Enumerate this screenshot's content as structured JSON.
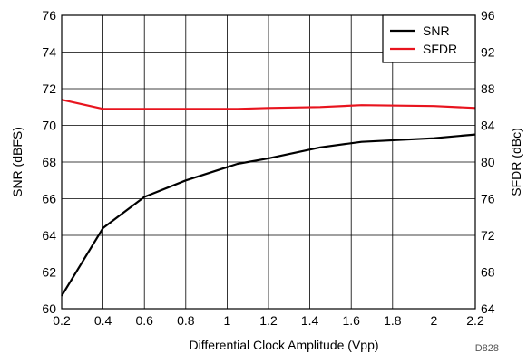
{
  "chart_data": {
    "type": "line",
    "xlabel": "Differential Clock Amplitude (Vpp)",
    "ylabel_left": "SNR (dBFS)",
    "ylabel_right": "SFDR (dBc)",
    "figure_id": "D828",
    "xlim": [
      0.2,
      2.2
    ],
    "ylim_left": [
      60,
      76
    ],
    "ylim_right": [
      64,
      96
    ],
    "x_ticks": [
      "0.2",
      "0.4",
      "0.6",
      "0.8",
      "1",
      "1.2",
      "1.4",
      "1.6",
      "1.8",
      "2",
      "2.2"
    ],
    "y_ticks_left": [
      "60",
      "62",
      "64",
      "66",
      "68",
      "70",
      "72",
      "74",
      "76"
    ],
    "y_ticks_right": [
      "64",
      "68",
      "72",
      "76",
      "80",
      "84",
      "88",
      "92",
      "96"
    ],
    "grid": true,
    "legend_position": "top-right",
    "series": [
      {
        "name": "SNR",
        "axis": "left",
        "color": "#000000",
        "x": [
          0.2,
          0.4,
          0.6,
          0.8,
          1.05,
          1.2,
          1.45,
          1.65,
          2.0,
          2.2
        ],
        "y": [
          60.7,
          64.4,
          66.1,
          67.0,
          67.9,
          68.2,
          68.8,
          69.1,
          69.3,
          69.5
        ]
      },
      {
        "name": "SFDR",
        "axis": "right",
        "color": "#e8141e",
        "x": [
          0.2,
          0.4,
          0.6,
          0.8,
          1.05,
          1.2,
          1.45,
          1.65,
          2.0,
          2.2
        ],
        "y": [
          86.8,
          85.8,
          85.8,
          85.8,
          85.8,
          85.9,
          86.0,
          86.2,
          86.1,
          85.9
        ]
      }
    ]
  }
}
